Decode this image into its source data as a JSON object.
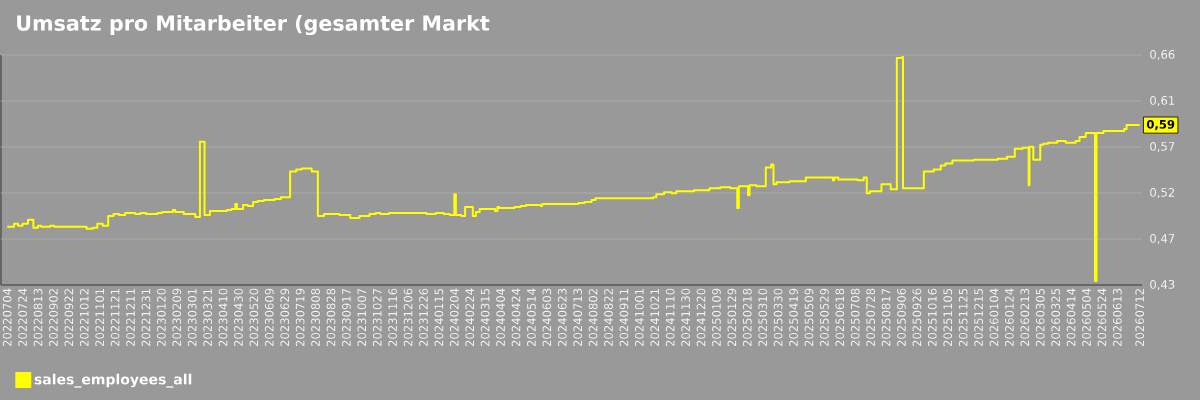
{
  "chart_data": {
    "type": "step",
    "title": "Umsatz pro Mitarbeiter (gesamter Markt",
    "x": [
      "2022-07-04",
      "2022-07-13",
      "2022-07-18",
      "2022-07-24",
      "2022-07-31",
      "2022-08-07",
      "2022-08-13",
      "2022-08-17",
      "2022-08-29",
      "2022-09-03",
      "2022-10-15",
      "2022-10-23",
      "2022-10-29",
      "2022-11-05",
      "2022-11-12",
      "2022-11-19",
      "2022-11-26",
      "2022-12-04",
      "2022-12-17",
      "2022-12-24",
      "2022-12-31",
      "2023-01-15",
      "2023-01-21",
      "2023-02-04",
      "2023-02-07",
      "2023-02-18",
      "2023-03-05",
      "2023-03-11",
      "2023-03-17",
      "2023-03-24",
      "2023-04-15",
      "2023-04-21",
      "2023-04-26",
      "2023-04-28",
      "2023-05-06",
      "2023-05-12",
      "2023-05-19",
      "2023-05-25",
      "2023-06-02",
      "2023-06-16",
      "2023-06-24",
      "2023-07-06",
      "2023-07-14",
      "2023-07-21",
      "2023-08-03",
      "2023-08-11",
      "2023-08-19",
      "2023-09-01",
      "2023-09-08",
      "2023-09-22",
      "2023-10-04",
      "2023-10-17",
      "2023-10-25",
      "2023-10-31",
      "2023-11-11",
      "2023-11-22",
      "2023-12-30",
      "2024-01-11",
      "2024-01-21",
      "2024-01-29",
      "2024-02-04",
      "2024-02-06",
      "2024-02-13",
      "2024-02-18",
      "2024-02-28",
      "2024-03-03",
      "2024-03-08",
      "2024-03-28",
      "2024-03-31",
      "2024-04-02",
      "2024-04-10",
      "2024-04-22",
      "2024-04-30",
      "2024-05-07",
      "2024-05-26",
      "2024-05-28",
      "2024-07-14",
      "2024-07-22",
      "2024-07-31",
      "2024-08-05",
      "2024-09-11",
      "2024-10-08",
      "2024-10-19",
      "2024-10-23",
      "2024-11-02",
      "2024-11-12",
      "2024-11-18",
      "2024-12-11",
      "2024-12-31",
      "2025-01-14",
      "2025-01-27",
      "2025-02-05",
      "2025-02-07",
      "2025-02-19",
      "2025-02-21",
      "2025-03-02",
      "2025-03-14",
      "2025-03-21",
      "2025-03-24",
      "2025-03-28",
      "2025-04-14",
      "2025-05-05",
      "2025-06-09",
      "2025-06-11",
      "2025-06-16",
      "2025-07-11",
      "2025-07-19",
      "2025-07-23",
      "2025-07-27",
      "2025-08-11",
      "2025-08-23",
      "2025-08-31",
      "2025-09-07",
      "2025-09-08",
      "2025-10-05",
      "2025-10-18",
      "2025-10-27",
      "2025-11-02",
      "2025-11-11",
      "2025-12-09",
      "2026-01-09",
      "2026-01-21",
      "2026-01-31",
      "2026-02-10",
      "2026-02-18",
      "2026-02-19",
      "2026-02-24",
      "2026-03-05",
      "2026-03-09",
      "2026-03-15",
      "2026-03-27",
      "2026-04-07",
      "2026-04-20",
      "2026-04-25",
      "2026-05-03",
      "2026-05-15",
      "2026-05-17",
      "2026-05-26",
      "2026-06-22",
      "2026-06-25",
      "2026-07-12"
    ],
    "series": [
      {
        "name": "sales_employees_all",
        "color": "#ffff00",
        "values": [
          0.487,
          0.49,
          0.488,
          0.49,
          0.494,
          0.486,
          0.488,
          0.487,
          0.488,
          0.487,
          0.485,
          0.486,
          0.49,
          0.488,
          0.498,
          0.5,
          0.499,
          0.501,
          0.5,
          0.501,
          0.5,
          0.501,
          0.502,
          0.504,
          0.502,
          0.5,
          0.497,
          0.573,
          0.499,
          0.503,
          0.504,
          0.505,
          0.51,
          0.505,
          0.509,
          0.508,
          0.512,
          0.513,
          0.514,
          0.515,
          0.517,
          0.543,
          0.545,
          0.546,
          0.543,
          0.498,
          0.5,
          0.5,
          0.499,
          0.496,
          0.498,
          0.5,
          0.501,
          0.5,
          0.501,
          0.501,
          0.5,
          0.501,
          0.5,
          0.499,
          0.52,
          0.499,
          0.498,
          0.507,
          0.498,
          0.502,
          0.505,
          0.503,
          0.507,
          0.506,
          0.506,
          0.507,
          0.508,
          0.509,
          0.508,
          0.51,
          0.511,
          0.512,
          0.514,
          0.516,
          0.516,
          0.516,
          0.517,
          0.52,
          0.522,
          0.521,
          0.523,
          0.524,
          0.526,
          0.527,
          0.526,
          0.506,
          0.528,
          0.519,
          0.529,
          0.528,
          0.547,
          0.55,
          0.53,
          0.532,
          0.533,
          0.537,
          0.534,
          0.537,
          0.535,
          0.534,
          0.537,
          0.521,
          0.523,
          0.53,
          0.525,
          0.658,
          0.659,
          0.526,
          0.543,
          0.545,
          0.549,
          0.551,
          0.554,
          0.555,
          0.556,
          0.558,
          0.566,
          0.567,
          0.529,
          0.568,
          0.555,
          0.57,
          0.571,
          0.572,
          0.574,
          0.572,
          0.574,
          0.578,
          0.582,
          0.432,
          0.582,
          0.584,
          0.586,
          0.59,
          0.59
        ]
      }
    ],
    "xlim": [
      "2022-06-26",
      "2026-07-15"
    ],
    "ylim": [
      0.428,
      0.661
    ],
    "xticks": [
      {
        "value": "2022-07-04",
        "label": "20220704"
      },
      {
        "value": "2022-07-24",
        "label": "20220724"
      },
      {
        "value": "2022-08-13",
        "label": "20220813"
      },
      {
        "value": "2022-09-02",
        "label": "20220902"
      },
      {
        "value": "2022-09-22",
        "label": "20220922"
      },
      {
        "value": "2022-10-12",
        "label": "20221012"
      },
      {
        "value": "2022-11-01",
        "label": "20221101"
      },
      {
        "value": "2022-11-21",
        "label": "20221121"
      },
      {
        "value": "2022-12-11",
        "label": "20221211"
      },
      {
        "value": "2022-12-31",
        "label": "20221231"
      },
      {
        "value": "2023-01-20",
        "label": "20230120"
      },
      {
        "value": "2023-02-09",
        "label": "20230209"
      },
      {
        "value": "2023-03-01",
        "label": "20230301"
      },
      {
        "value": "2023-03-21",
        "label": "20230321"
      },
      {
        "value": "2023-04-10",
        "label": "20230410"
      },
      {
        "value": "2023-04-30",
        "label": "20230430"
      },
      {
        "value": "2023-05-20",
        "label": "20230520"
      },
      {
        "value": "2023-06-09",
        "label": "20230609"
      },
      {
        "value": "2023-06-29",
        "label": "20230629"
      },
      {
        "value": "2023-07-19",
        "label": "20230719"
      },
      {
        "value": "2023-08-08",
        "label": "20230808"
      },
      {
        "value": "2023-08-28",
        "label": "20230828"
      },
      {
        "value": "2023-09-17",
        "label": "20230917"
      },
      {
        "value": "2023-10-07",
        "label": "20231007"
      },
      {
        "value": "2023-10-27",
        "label": "20231027"
      },
      {
        "value": "2023-11-16",
        "label": "20231116"
      },
      {
        "value": "2023-12-06",
        "label": "20231206"
      },
      {
        "value": "2023-12-26",
        "label": "20231226"
      },
      {
        "value": "2024-01-15",
        "label": "20240115"
      },
      {
        "value": "2024-02-04",
        "label": "20240204"
      },
      {
        "value": "2024-02-24",
        "label": "20240224"
      },
      {
        "value": "2024-03-15",
        "label": "20240315"
      },
      {
        "value": "2024-04-04",
        "label": "20240404"
      },
      {
        "value": "2024-04-24",
        "label": "20240424"
      },
      {
        "value": "2024-05-14",
        "label": "20240514"
      },
      {
        "value": "2024-06-03",
        "label": "20240603"
      },
      {
        "value": "2024-06-23",
        "label": "20240623"
      },
      {
        "value": "2024-07-13",
        "label": "20240713"
      },
      {
        "value": "2024-08-02",
        "label": "20240802"
      },
      {
        "value": "2024-08-22",
        "label": "20240822"
      },
      {
        "value": "2024-09-11",
        "label": "20240911"
      },
      {
        "value": "2024-10-01",
        "label": "20241001"
      },
      {
        "value": "2024-10-21",
        "label": "20241021"
      },
      {
        "value": "2024-11-10",
        "label": "20241110"
      },
      {
        "value": "2024-11-30",
        "label": "20241130"
      },
      {
        "value": "2024-12-20",
        "label": "20241220"
      },
      {
        "value": "2025-01-09",
        "label": "20250109"
      },
      {
        "value": "2025-01-29",
        "label": "20250129"
      },
      {
        "value": "2025-02-18",
        "label": "20250218"
      },
      {
        "value": "2025-03-10",
        "label": "20250310"
      },
      {
        "value": "2025-03-30",
        "label": "20250330"
      },
      {
        "value": "2025-04-19",
        "label": "20250419"
      },
      {
        "value": "2025-05-09",
        "label": "20250509"
      },
      {
        "value": "2025-05-29",
        "label": "20250529"
      },
      {
        "value": "2025-06-18",
        "label": "20250618"
      },
      {
        "value": "2025-07-08",
        "label": "20250708"
      },
      {
        "value": "2025-07-28",
        "label": "20250728"
      },
      {
        "value": "2025-08-17",
        "label": "20250817"
      },
      {
        "value": "2025-09-06",
        "label": "20250906"
      },
      {
        "value": "2025-09-26",
        "label": "20250926"
      },
      {
        "value": "2025-10-16",
        "label": "20251016"
      },
      {
        "value": "2025-11-05",
        "label": "20251105"
      },
      {
        "value": "2025-11-25",
        "label": "20251125"
      },
      {
        "value": "2025-12-15",
        "label": "20251215"
      },
      {
        "value": "2026-01-04",
        "label": "20260104"
      },
      {
        "value": "2026-01-24",
        "label": "20260124"
      },
      {
        "value": "2026-02-13",
        "label": "20260213"
      },
      {
        "value": "2026-03-05",
        "label": "20260305"
      },
      {
        "value": "2026-03-25",
        "label": "20260325"
      },
      {
        "value": "2026-04-14",
        "label": "20260414"
      },
      {
        "value": "2026-05-04",
        "label": "20260504"
      },
      {
        "value": "2026-05-24",
        "label": "20260524"
      },
      {
        "value": "2026-06-13",
        "label": "20260613"
      },
      {
        "value": "2026-07-12",
        "label": "20260712"
      }
    ],
    "yticks": [
      {
        "value": 0.428,
        "label": "0,43"
      },
      {
        "value": 0.4746,
        "label": "0,47"
      },
      {
        "value": 0.5212,
        "label": "0,52"
      },
      {
        "value": 0.5678,
        "label": "0,57"
      },
      {
        "value": 0.6144,
        "label": "0,61"
      },
      {
        "value": 0.661,
        "label": "0,66"
      }
    ],
    "grid": "y",
    "legend": "bottom left",
    "annotations": [
      {
        "text": "0,59",
        "x": "2026-07-12",
        "y": 0.59
      }
    ]
  }
}
